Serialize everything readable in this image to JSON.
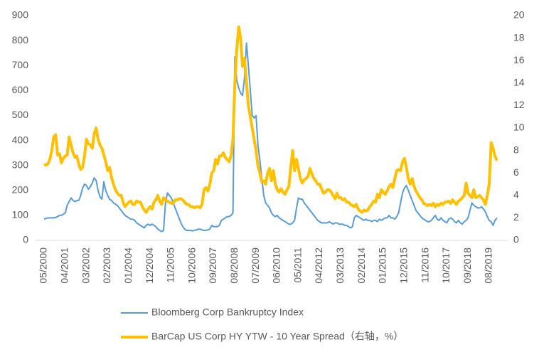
{
  "chart_data": {
    "type": "line",
    "categories": [
      "05/2000",
      null,
      null,
      null,
      null,
      null,
      null,
      null,
      null,
      null,
      null,
      "04/2001",
      null,
      null,
      null,
      null,
      null,
      null,
      null,
      null,
      null,
      null,
      "03/2002",
      null,
      null,
      null,
      null,
      null,
      null,
      null,
      null,
      null,
      null,
      "02/2003",
      null,
      null,
      null,
      null,
      null,
      null,
      null,
      null,
      null,
      null,
      "01/2004",
      null,
      null,
      null,
      null,
      null,
      null,
      null,
      null,
      null,
      null,
      "12/2004",
      null,
      null,
      null,
      null,
      null,
      null,
      null,
      null,
      null,
      null,
      "11/2005",
      null,
      null,
      null,
      null,
      null,
      null,
      null,
      null,
      null,
      null,
      "10/2006",
      null,
      null,
      null,
      null,
      null,
      null,
      null,
      null,
      null,
      null,
      "09/2007",
      null,
      null,
      null,
      null,
      null,
      null,
      null,
      null,
      null,
      null,
      "08/2008",
      null,
      null,
      null,
      null,
      null,
      null,
      null,
      null,
      null,
      null,
      "07/2009",
      null,
      null,
      null,
      null,
      null,
      null,
      null,
      null,
      null,
      null,
      "06/2010",
      null,
      null,
      null,
      null,
      null,
      null,
      null,
      null,
      null,
      null,
      "05/2011",
      null,
      null,
      null,
      null,
      null,
      null,
      null,
      null,
      null,
      null,
      "04/2012",
      null,
      null,
      null,
      null,
      null,
      null,
      null,
      null,
      null,
      null,
      "03/2013",
      null,
      null,
      null,
      null,
      null,
      null,
      null,
      null,
      null,
      null,
      "02/2014",
      null,
      null,
      null,
      null,
      null,
      null,
      null,
      null,
      null,
      null,
      "01/2015",
      null,
      null,
      null,
      null,
      null,
      null,
      null,
      null,
      null,
      null,
      "12/2015",
      null,
      null,
      null,
      null,
      null,
      null,
      null,
      null,
      null,
      null,
      "11/2016",
      null,
      null,
      null,
      null,
      null,
      null,
      null,
      null,
      null,
      null,
      "10/2017",
      null,
      null,
      null,
      null,
      null,
      null,
      null,
      null,
      null,
      null,
      "09/2018",
      null,
      null,
      null,
      null,
      null,
      null,
      null,
      null,
      null,
      null,
      "08/2019",
      null,
      null,
      null,
      null
    ],
    "series": [
      {
        "name": "Bloomberg Corp Bankruptcy Index",
        "color": "#5b9bd5",
        "axis": "y",
        "values": [
          85,
          88,
          90,
          90,
          90,
          90,
          92,
          95,
          100,
          100,
          105,
          110,
          140,
          155,
          170,
          160,
          155,
          160,
          160,
          180,
          210,
          225,
          220,
          205,
          215,
          230,
          250,
          240,
          200,
          175,
          165,
          235,
          200,
          180,
          165,
          160,
          150,
          145,
          140,
          130,
          120,
          110,
          100,
          95,
          90,
          85,
          85,
          80,
          70,
          65,
          60,
          55,
          50,
          60,
          65,
          60,
          65,
          60,
          55,
          45,
          40,
          35,
          40,
          150,
          190,
          180,
          170,
          150,
          130,
          110,
          90,
          70,
          55,
          45,
          40,
          40,
          40,
          38,
          40,
          42,
          45,
          45,
          42,
          40,
          40,
          42,
          45,
          60,
          55,
          55,
          55,
          60,
          80,
          85,
          90,
          95,
          95,
          100,
          110,
          735,
          640,
          610,
          590,
          580,
          650,
          790,
          700,
          600,
          500,
          490,
          500,
          380,
          320,
          250,
          180,
          150,
          140,
          130,
          110,
          100,
          95,
          100,
          90,
          85,
          80,
          75,
          70,
          65,
          65,
          70,
          80,
          130,
          170,
          165,
          165,
          150,
          140,
          130,
          120,
          110,
          100,
          90,
          80,
          75,
          70,
          70,
          70,
          70,
          75,
          70,
          65,
          70,
          70,
          65,
          65,
          65,
          60,
          60,
          55,
          50,
          55,
          90,
          100,
          95,
          90,
          85,
          80,
          85,
          80,
          80,
          75,
          80,
          80,
          75,
          85,
          80,
          85,
          90,
          90,
          100,
          90,
          90,
          85,
          95,
          110,
          150,
          190,
          210,
          220,
          200,
          180,
          160,
          140,
          120,
          110,
          100,
          90,
          85,
          80,
          75,
          75,
          80,
          90,
          100,
          85,
          80,
          90,
          80,
          75,
          70,
          85,
          90,
          85,
          75,
          70,
          80,
          70,
          65,
          75,
          80,
          90,
          120,
          150,
          140,
          135,
          130,
          130,
          135,
          125,
          115,
          95,
          80,
          75,
          60,
          80,
          90
        ]
      },
      {
        "name": "BarCap US Corp HY YTW - 10 Year Spread（右轴，%）",
        "color": "#ffc000",
        "axis": "y2",
        "values": [
          6.8,
          6.7,
          6.8,
          7.2,
          8,
          9.2,
          9.4,
          7.6,
          7.7,
          6.9,
          7.3,
          7.5,
          7.6,
          9.2,
          8.5,
          7.8,
          7.4,
          7.5,
          6.8,
          6.3,
          6.5,
          7.5,
          9,
          8.6,
          8.5,
          8.2,
          9.5,
          10,
          9,
          8.5,
          8.2,
          7.6,
          7,
          6.2,
          6.5,
          5.6,
          5,
          4.5,
          4.2,
          4,
          4,
          3.4,
          3,
          3.2,
          3.4,
          3.5,
          3.2,
          3.2,
          3.5,
          3.4,
          3.4,
          3,
          2.7,
          2.5,
          2.8,
          3,
          2.8,
          3.4,
          3.6,
          4,
          3.5,
          3.2,
          3.8,
          3.6,
          3.5,
          3.4,
          3.3,
          3.3,
          3.6,
          3.6,
          3.7,
          3.7,
          3.6,
          3.4,
          3.2,
          3.2,
          3,
          3,
          2.9,
          3,
          3,
          2.9,
          3.2,
          4.5,
          4.7,
          4.4,
          5,
          6,
          6.2,
          7.2,
          6.8,
          7.5,
          7.5,
          7.8,
          7.4,
          7.2,
          7,
          7.5,
          9,
          14,
          17,
          19,
          18,
          15.5,
          16.2,
          14,
          12,
          11,
          10,
          9,
          8,
          6.6,
          6,
          5.2,
          5.3,
          5,
          6,
          6.4,
          5.3,
          6.2,
          5,
          4.5,
          4.3,
          4.6,
          4.3,
          4.1,
          4.5,
          4.8,
          6.5,
          8,
          6.2,
          7.2,
          6.4,
          5.5,
          5.1,
          5.4,
          5.5,
          5.7,
          6.4,
          5.9,
          5.5,
          5.3,
          5,
          5,
          4.6,
          4.2,
          4.3,
          4.5,
          4.5,
          4.3,
          4,
          3.7,
          4.2,
          3.8,
          3.8,
          3.6,
          3.7,
          3.4,
          3.4,
          3.2,
          3.1,
          3,
          3.2,
          2.8,
          2.6,
          2.5,
          2.7,
          2.6,
          2.7,
          3,
          3.2,
          3.5,
          3.4,
          4.1,
          3.8,
          4.5,
          4.3,
          4.1,
          4.4,
          4.8,
          5,
          4.7,
          5.5,
          6.2,
          6.3,
          6.2,
          7,
          7.3,
          6.5,
          5.5,
          5,
          5.5,
          4.8,
          4.4,
          4.1,
          3.8,
          3.6,
          3.3,
          3.2,
          3.1,
          3.2,
          3.1,
          3.3,
          3,
          3.2,
          3.1,
          3.3,
          3.2,
          3.4,
          3.4,
          3.5,
          3.3,
          3.6,
          3.4,
          3.2,
          3.5,
          3.6,
          3.8,
          4,
          5.1,
          4.2,
          4,
          3.8,
          4.5,
          3.8,
          3.9,
          4,
          3.8,
          3.6,
          3.2,
          4,
          5,
          8.7,
          8.2,
          7.5,
          7.1
        ]
      }
    ],
    "ylim": [
      0,
      900
    ],
    "yticks": [
      0,
      100,
      200,
      300,
      400,
      500,
      600,
      700,
      800,
      900
    ],
    "y2lim": [
      0,
      20
    ],
    "y2ticks": [
      0,
      2,
      4,
      6,
      8,
      10,
      12,
      14,
      16,
      18,
      20
    ],
    "grid": false
  }
}
